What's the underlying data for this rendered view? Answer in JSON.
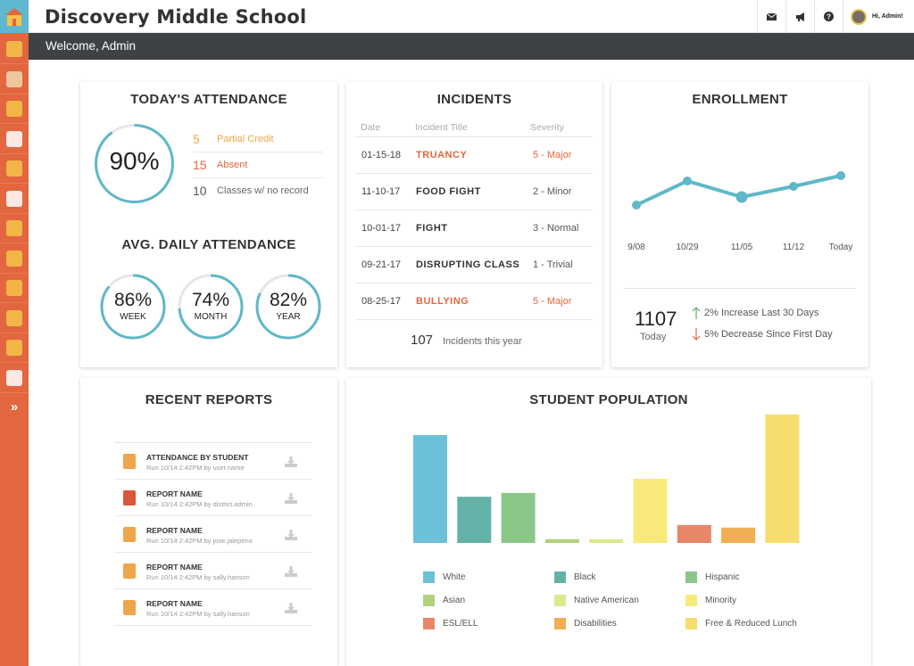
{
  "header": {
    "school_name": "Discovery Middle School",
    "welcome": "Welcome, Admin",
    "user_greeting": "Hi, Admin!",
    "icons": [
      "mail-icon",
      "megaphone-icon",
      "help-icon"
    ]
  },
  "sidebar": {
    "items": [
      "home-icon",
      "book-icon",
      "calendar-icon",
      "gradebook-icon",
      "apple-icon",
      "list-icon",
      "report-icon",
      "id-card-icon",
      "warning-icon",
      "dollar-icon",
      "bus-icon",
      "grid-icon",
      "school-icon"
    ],
    "expand_icon": "double-chevron-right-icon"
  },
  "attendance": {
    "title": "TODAY'S ATTENDANCE",
    "today_percent": "90%",
    "today_fraction": 0.9,
    "rows": [
      {
        "count": "5",
        "label": "Partial Credit",
        "color": "#f0a54a"
      },
      {
        "count": "15",
        "label": "Absent",
        "color": "#e2663f"
      },
      {
        "count": "10",
        "label": "Classes w/ no record",
        "color": "#555555"
      }
    ],
    "avg_title": "AVG. DAILY ATTENDANCE",
    "avg": [
      {
        "value": "86%",
        "label": "WEEK",
        "fraction": 0.86
      },
      {
        "value": "74%",
        "label": "MONTH",
        "fraction": 0.74
      },
      {
        "value": "82%",
        "label": "YEAR",
        "fraction": 0.82
      }
    ]
  },
  "incidents": {
    "title": "INCIDENTS",
    "columns": [
      "Date",
      "Incident Title",
      "Severity"
    ],
    "rows": [
      {
        "date": "01-15-18",
        "title": "TRUANCY",
        "severity": "5 - Major",
        "major": true
      },
      {
        "date": "11-10-17",
        "title": "FOOD FIGHT",
        "severity": "2 - Minor",
        "major": false
      },
      {
        "date": "10-01-17",
        "title": "FIGHT",
        "severity": "3 - Normal",
        "major": false
      },
      {
        "date": "09-21-17",
        "title": "DISRUPTING CLASS",
        "severity": "1 - Trivial",
        "major": false
      },
      {
        "date": "08-25-17",
        "title": "BULLYING",
        "severity": "5 - Major",
        "major": true
      }
    ],
    "total": "107",
    "total_label": "Incidents this year"
  },
  "enrollment": {
    "title": "ENROLLMENT",
    "count": "1107",
    "count_label": "Today",
    "stat_up": "2% Increase Last 30 Days",
    "stat_down": "5% Decrease Since First Day",
    "chart_data": {
      "type": "line",
      "x": [
        "9/08",
        "10/29",
        "11/05",
        "11/12",
        "Today"
      ],
      "relative_values": [
        0.3,
        0.75,
        0.45,
        0.65,
        0.85
      ],
      "line_color": "#5fb8c8"
    }
  },
  "reports": {
    "title": "RECENT REPORTS",
    "items": [
      {
        "name": "ATTENDANCE BY STUDENT",
        "run": "Run 10/14 2:42PM by user.name",
        "color": "#f0a54a"
      },
      {
        "name": "REPORT NAME",
        "run": "Run 10/14 2:42PM by district.admin",
        "color": "#d9573a"
      },
      {
        "name": "REPORT NAME",
        "run": "Run 10/14 2:42PM by jose.jalepeno",
        "color": "#f0a54a"
      },
      {
        "name": "REPORT NAME",
        "run": "Run 10/14 2:42PM by sally.hanson",
        "color": "#f0a54a"
      },
      {
        "name": "REPORT NAME",
        "run": "Run 10/14 2:42PM by sally.hanson",
        "color": "#f0a54a"
      }
    ]
  },
  "population": {
    "title": "STUDENT POPULATION",
    "chart_data": {
      "type": "bar",
      "categories": [
        "White",
        "Black",
        "Hispanic",
        "Asian",
        "Native American",
        "Minority",
        "ESL/ELL",
        "Disabilities",
        "Free & Reduced Lunch"
      ],
      "relative_values": [
        0.84,
        0.36,
        0.39,
        0.03,
        0.03,
        0.5,
        0.14,
        0.12,
        1.0
      ],
      "colors": [
        "#6cc0d8",
        "#64b2a7",
        "#8cc78a",
        "#b2d17e",
        "#dde88e",
        "#f7ea7a",
        "#e8866a",
        "#f2ae52",
        "#f7dc6e"
      ]
    },
    "legend_order": [
      0,
      1,
      2,
      3,
      4,
      5,
      6,
      7,
      8
    ]
  }
}
